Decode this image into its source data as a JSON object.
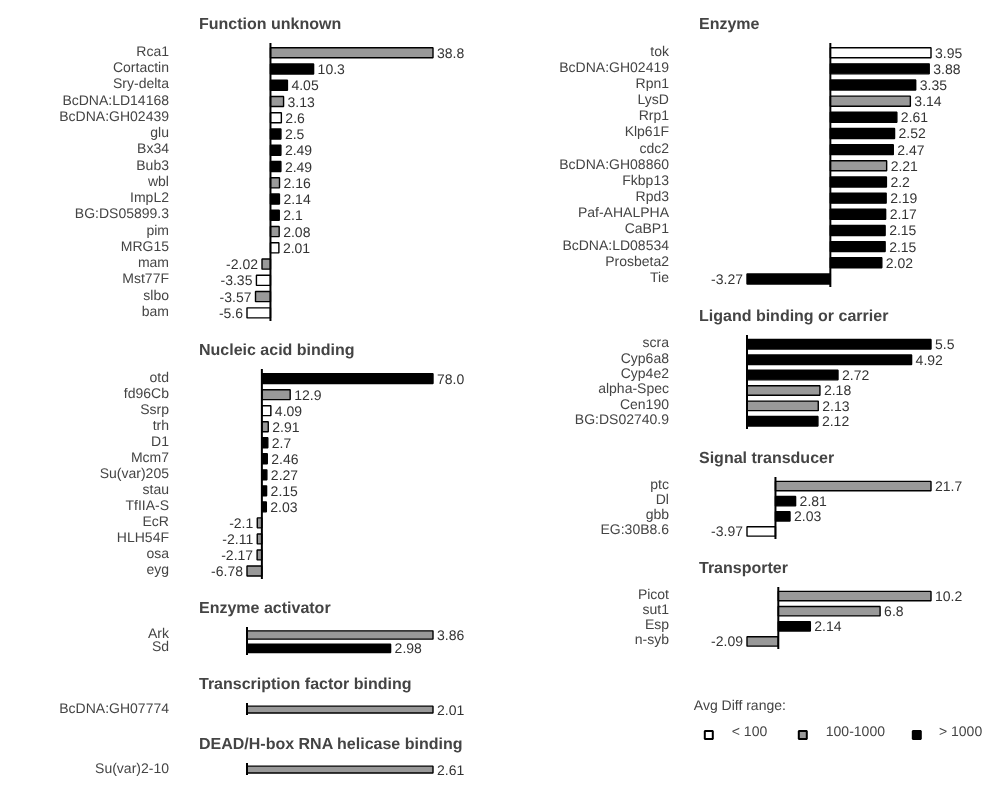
{
  "chart_data": [
    {
      "type": "bar",
      "orientation": "horizontal",
      "title": "Function unknown",
      "categories": [
        "Rca1",
        "Cortactin",
        "Sry-delta",
        "BcDNA:LD14168",
        "BcDNA:GH02439",
        "glu",
        "Bx34",
        "Bub3",
        "wbl",
        "ImpL2",
        "BG:DS05899.3",
        "pim",
        "MRG15",
        "mam",
        "Mst77F",
        "slbo",
        "bam"
      ],
      "values": [
        38.8,
        10.3,
        4.05,
        3.13,
        2.6,
        2.5,
        2.49,
        2.49,
        2.16,
        2.14,
        2.1,
        2.08,
        2.01,
        -2.02,
        -3.35,
        -3.57,
        -5.6
      ],
      "colors": [
        "#999999",
        "#000000",
        "#000000",
        "#999999",
        "#ffffff",
        "#000000",
        "#000000",
        "#000000",
        "#999999",
        "#000000",
        "#000000",
        "#999999",
        "#ffffff",
        "#999999",
        "#ffffff",
        "#999999",
        "#ffffff"
      ],
      "data_labels": true,
      "tick_labels": "y"
    },
    {
      "type": "bar",
      "orientation": "horizontal",
      "title": "Nucleic acid binding",
      "categories": [
        "otd",
        "fd96Cb",
        "Ssrp",
        "trh",
        "D1",
        "Mcm7",
        "Su(var)205",
        "stau",
        "TfIIA-S",
        "EcR",
        "HLH54F",
        "osa",
        "eyg"
      ],
      "values": [
        78.0,
        12.9,
        4.09,
        2.91,
        2.7,
        2.46,
        2.27,
        2.15,
        2.03,
        -2.1,
        -2.11,
        -2.17,
        -6.78
      ],
      "value_labels": [
        "78.0",
        "12.9",
        "4.09",
        "2.91",
        "2.7",
        "2.46",
        "2.27",
        "2.15",
        "2.03",
        "-2.1",
        "-2.11",
        "-2.17",
        "-6.78"
      ],
      "colors": [
        "#000000",
        "#999999",
        "#ffffff",
        "#999999",
        "#000000",
        "#000000",
        "#000000",
        "#000000",
        "#000000",
        "#999999",
        "#999999",
        "#999999",
        "#999999"
      ],
      "tick_labels": "y"
    },
    {
      "type": "bar",
      "orientation": "horizontal",
      "title": "Enzyme activator",
      "categories": [
        "Ark",
        "Sd"
      ],
      "values": [
        3.86,
        2.98
      ],
      "colors": [
        "#999999",
        "#000000"
      ],
      "data_labels": true,
      "tick_labels": "y"
    },
    {
      "type": "bar",
      "orientation": "horizontal",
      "title": "Transcription factor binding",
      "categories": [
        "BcDNA:GH07774"
      ],
      "values": [
        2.01
      ],
      "colors": [
        "#999999"
      ],
      "data_labels": true,
      "tick_labels": "y"
    },
    {
      "type": "bar",
      "orientation": "horizontal",
      "title": "DEAD/H-box RNA helicase binding",
      "categories": [
        "Su(var)2-10"
      ],
      "values": [
        2.61
      ],
      "colors": [
        "#999999"
      ],
      "data_labels": true,
      "tick_labels": "y"
    },
    {
      "type": "bar",
      "orientation": "horizontal",
      "title": "Enzyme",
      "categories": [
        "tok",
        "BcDNA:GH02419",
        "Rpn1",
        "LysD",
        "Rrp1",
        "Klp61F",
        "cdc2",
        "BcDNA:GH08860",
        "Fkbp13",
        "Rpd3",
        "Paf-AHALPHA",
        "CaBP1",
        "BcDNA:LD08534",
        "Prosbeta2",
        "Tie"
      ],
      "values": [
        3.95,
        3.88,
        3.35,
        3.14,
        2.61,
        2.52,
        2.47,
        2.21,
        2.2,
        2.19,
        2.17,
        2.15,
        2.15,
        2.02,
        -3.27
      ],
      "colors": [
        "#ffffff",
        "#000000",
        "#000000",
        "#999999",
        "#000000",
        "#000000",
        "#000000",
        "#999999",
        "#000000",
        "#000000",
        "#000000",
        "#000000",
        "#000000",
        "#000000",
        "#000000"
      ],
      "data_labels": true,
      "tick_labels": "y"
    },
    {
      "type": "bar",
      "orientation": "horizontal",
      "title": "Ligand binding or carrier",
      "categories": [
        "scra",
        "Cyp6a8",
        "Cyp4e2",
        "alpha-Spec",
        "Cen190",
        "BG:DS02740.9"
      ],
      "values": [
        5.5,
        4.92,
        2.72,
        2.18,
        2.13,
        2.12
      ],
      "colors": [
        "#000000",
        "#000000",
        "#000000",
        "#999999",
        "#999999",
        "#000000"
      ],
      "data_labels": true,
      "tick_labels": "y"
    },
    {
      "type": "bar",
      "orientation": "horizontal",
      "title": "Signal transducer",
      "categories": [
        "ptc",
        "Dl",
        "gbb",
        "EG:30B8.6"
      ],
      "values": [
        21.7,
        2.81,
        2.03,
        -3.97
      ],
      "colors": [
        "#999999",
        "#000000",
        "#000000",
        "#ffffff"
      ],
      "data_labels": true,
      "tick_labels": "y"
    },
    {
      "type": "bar",
      "orientation": "horizontal",
      "title": "Transporter",
      "categories": [
        "Picot",
        "sut1",
        "Esp",
        "n-syb"
      ],
      "values": [
        10.2,
        6.8,
        2.14,
        -2.09
      ],
      "colors": [
        "#999999",
        "#999999",
        "#000000",
        "#999999"
      ],
      "data_labels": true,
      "tick_labels": "y"
    },
    {
      "type": "other",
      "legend_title": "Avg Diff range:",
      "legend": "center",
      "series": [
        {
          "name": "< 100",
          "color": "#ffffff"
        },
        {
          "name": "100-1000",
          "color": "#999999"
        },
        {
          "name": "> 1000",
          "color": "#000000"
        }
      ]
    }
  ]
}
